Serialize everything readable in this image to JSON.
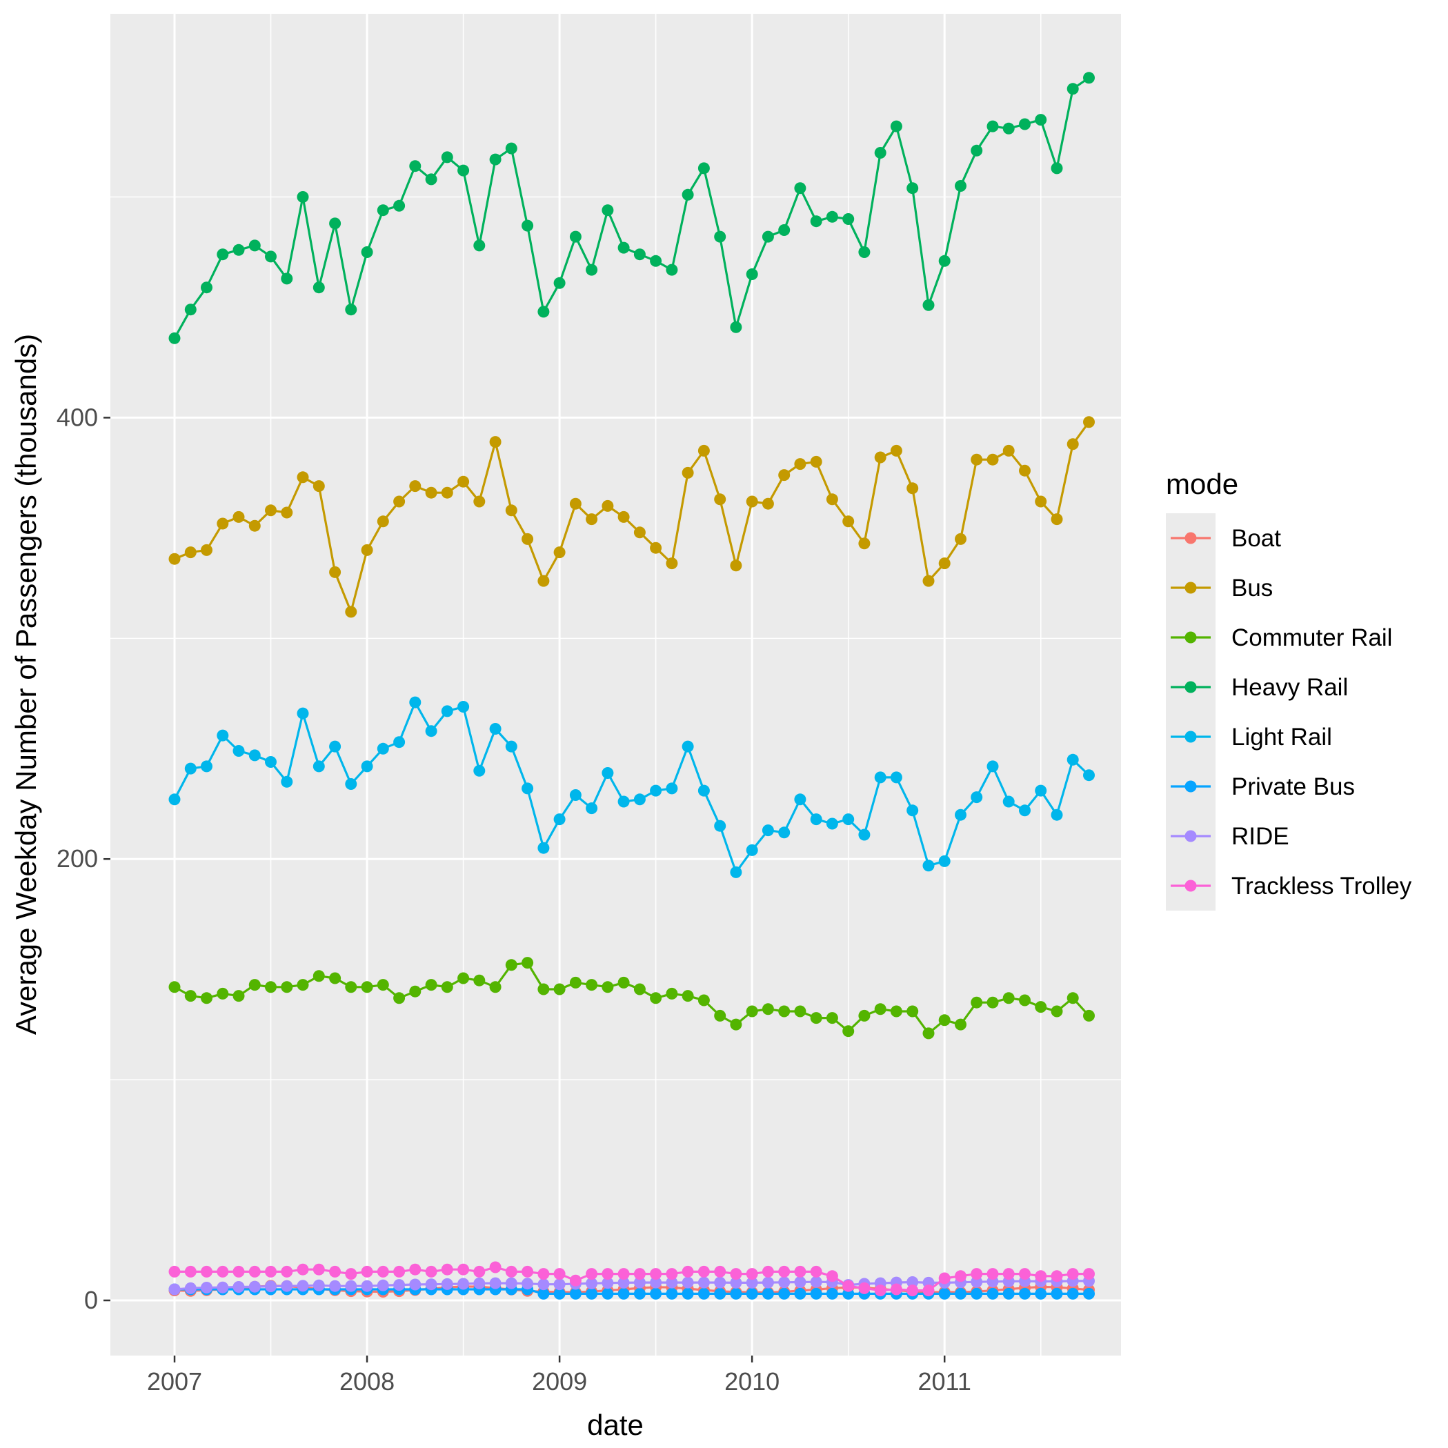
{
  "chart_data": {
    "type": "line",
    "title": "",
    "xlabel": "date",
    "ylabel": "Average Weekday Number of Passengers (thousands)",
    "x_ticks": [
      "2007",
      "2008",
      "2009",
      "2010",
      "2011"
    ],
    "y_ticks": [
      "0",
      "200",
      "400"
    ],
    "xlim": [
      "2006-09",
      "2011-12"
    ],
    "ylim": [
      -25,
      583
    ],
    "grid": true,
    "markers": true,
    "legend": {
      "title": "mode",
      "position": "right"
    },
    "x": [
      "2007-01",
      "2007-02",
      "2007-03",
      "2007-04",
      "2007-05",
      "2007-06",
      "2007-07",
      "2007-08",
      "2007-09",
      "2007-10",
      "2007-11",
      "2007-12",
      "2008-01",
      "2008-02",
      "2008-03",
      "2008-04",
      "2008-05",
      "2008-06",
      "2008-07",
      "2008-08",
      "2008-09",
      "2008-10",
      "2008-11",
      "2008-12",
      "2009-01",
      "2009-02",
      "2009-03",
      "2009-04",
      "2009-05",
      "2009-06",
      "2009-07",
      "2009-08",
      "2009-09",
      "2009-10",
      "2009-11",
      "2009-12",
      "2010-01",
      "2010-02",
      "2010-03",
      "2010-04",
      "2010-05",
      "2010-06",
      "2010-07",
      "2010-08",
      "2010-09",
      "2010-10",
      "2010-11",
      "2010-12",
      "2011-01",
      "2011-02",
      "2011-03",
      "2011-04",
      "2011-05",
      "2011-06",
      "2011-07",
      "2011-08",
      "2011-09",
      "2011-10"
    ],
    "series": [
      {
        "name": "Boat",
        "color": "#F8766D",
        "values": [
          4.5,
          4.3,
          4.6,
          5.0,
          5.6,
          6.2,
          6.6,
          6.5,
          5.8,
          5.2,
          4.6,
          4.2,
          4.0,
          3.9,
          4.2,
          4.7,
          5.3,
          5.9,
          6.3,
          6.2,
          5.6,
          4.9,
          4.3,
          3.9,
          3.8,
          3.7,
          4.0,
          4.5,
          5.0,
          5.6,
          6.0,
          5.9,
          5.3,
          4.7,
          4.1,
          3.8,
          3.7,
          3.6,
          3.9,
          4.4,
          4.9,
          5.5,
          5.9,
          5.8,
          5.2,
          4.6,
          4.0,
          3.7,
          3.8,
          3.7,
          4.0,
          4.5,
          5.1,
          5.7,
          6.1,
          6.0,
          5.4,
          4.8
        ]
      },
      {
        "name": "Bus",
        "color": "#C49A00",
        "values": [
          336,
          339,
          340,
          352,
          355,
          351,
          358,
          357,
          373,
          369,
          330,
          312,
          340,
          353,
          362,
          369,
          366,
          366,
          371,
          362,
          389,
          358,
          345,
          326,
          339,
          361,
          354,
          360,
          355,
          348,
          341,
          334,
          375,
          385,
          363,
          333,
          362,
          361,
          374,
          379,
          380,
          363,
          353,
          343,
          382,
          385,
          368,
          326,
          334,
          345,
          381,
          381,
          385,
          376,
          362,
          354,
          388,
          398
        ]
      },
      {
        "name": "Commuter Rail",
        "color": "#53B400",
        "values": [
          142,
          138,
          137,
          139,
          138,
          143,
          142,
          142,
          143,
          147,
          146,
          142,
          142,
          143,
          137,
          140,
          143,
          142,
          146,
          145,
          142,
          152,
          153,
          141,
          141,
          144,
          143,
          142,
          144,
          141,
          137,
          139,
          138,
          136,
          129,
          125,
          131,
          132,
          131,
          131,
          128,
          128,
          122,
          129,
          132,
          131,
          131,
          121,
          127,
          125,
          135,
          135,
          137,
          136,
          133,
          131,
          137,
          129
        ]
      },
      {
        "name": "Heavy Rail",
        "color": "#00B15C",
        "values": [
          436,
          449,
          459,
          474,
          476,
          478,
          473,
          463,
          500,
          459,
          488,
          449,
          475,
          494,
          496,
          514,
          508,
          518,
          512,
          478,
          517,
          522,
          487,
          448,
          461,
          482,
          467,
          494,
          477,
          474,
          471,
          467,
          501,
          513,
          482,
          441,
          465,
          482,
          485,
          504,
          489,
          491,
          490,
          475,
          520,
          532,
          504,
          451,
          471,
          505,
          521,
          532,
          531,
          533,
          535,
          513,
          549,
          554
        ]
      },
      {
        "name": "Light Rail",
        "color": "#00B6EB",
        "color_note": "teal",
        "values": [
          227,
          241,
          242,
          256,
          249,
          247,
          244,
          235,
          266,
          242,
          251,
          234,
          242,
          250,
          253,
          271,
          258,
          267,
          269,
          240,
          259,
          251,
          232,
          205,
          218,
          229,
          223,
          239,
          226,
          227,
          231,
          232,
          251,
          231,
          215,
          194,
          204,
          213,
          212,
          227,
          218,
          216,
          218,
          211,
          237,
          237,
          222,
          197,
          199,
          220,
          228,
          242,
          226,
          222,
          231,
          220,
          245,
          238
        ]
      },
      {
        "name": "Private Bus",
        "color": "#06A4FF",
        "values": [
          5.0,
          5.0,
          5.0,
          5.0,
          5.0,
          5.0,
          5.0,
          5.0,
          5.0,
          5.0,
          5.0,
          5.0,
          5.0,
          5.0,
          5.0,
          5.0,
          5.0,
          5.0,
          5.0,
          5.0,
          5.0,
          5.0,
          5.0,
          3.0,
          3.0,
          3.0,
          3.0,
          3.0,
          3.0,
          3.0,
          3.0,
          3.0,
          3.0,
          3.0,
          3.0,
          3.0,
          3.0,
          3.0,
          3.0,
          3.0,
          3.0,
          3.0,
          3.0,
          3.0,
          3.0,
          3.0,
          3.0,
          3.0,
          3.0,
          3.0,
          3.0,
          3.0,
          3.0,
          3.0,
          3.0,
          3.0,
          3.0,
          3.0
        ]
      },
      {
        "name": "RIDE",
        "color": "#A58AFF",
        "values": [
          5.0,
          5.5,
          5.8,
          5.9,
          6.1,
          6.2,
          6.4,
          6.5,
          6.6,
          6.8,
          6.5,
          6.5,
          6.5,
          6.8,
          7.0,
          7.2,
          7.3,
          7.4,
          7.5,
          7.7,
          7.8,
          7.8,
          7.6,
          7.3,
          7.3,
          7.5,
          7.7,
          7.9,
          8.0,
          8.1,
          8.1,
          8.1,
          8.1,
          8.1,
          8.1,
          8.0,
          8.0,
          8.1,
          8.2,
          8.3,
          8.4,
          8.3,
          7.0,
          7.5,
          7.8,
          8.1,
          8.3,
          8.0,
          8.0,
          8.2,
          8.4,
          8.5,
          8.6,
          8.7,
          8.6,
          8.6,
          8.8,
          8.8
        ]
      },
      {
        "name": "Trackless Trolley",
        "color": "#FB61D7",
        "values": [
          13,
          13,
          13,
          13,
          13,
          13,
          13,
          13,
          14,
          14,
          13,
          12,
          13,
          13,
          13,
          14,
          13,
          14,
          14,
          13,
          15,
          13,
          13,
          12,
          12,
          9,
          12,
          12,
          12,
          12,
          12,
          12,
          13,
          13,
          13,
          12,
          12,
          13,
          13,
          13,
          13,
          11,
          6.5,
          5.5,
          4.5,
          5.0,
          4.5,
          4.5,
          10,
          11,
          12,
          12,
          12,
          12,
          11,
          11,
          12,
          12
        ]
      }
    ]
  }
}
